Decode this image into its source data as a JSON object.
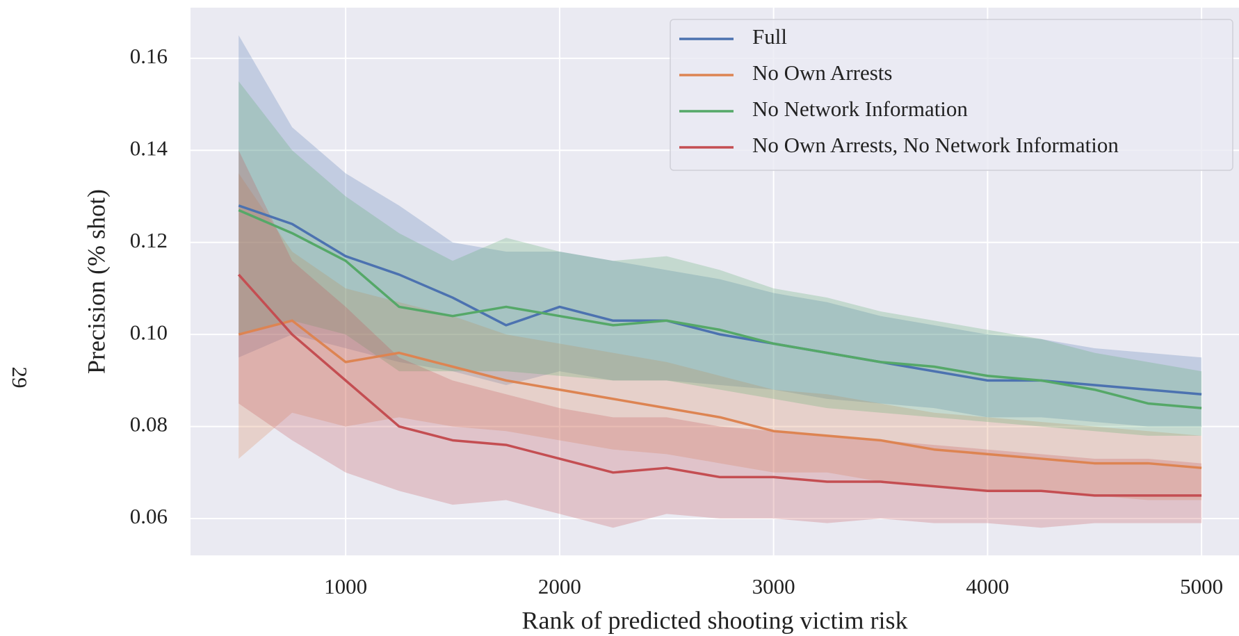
{
  "page_number": "29",
  "chart_data": {
    "type": "line",
    "xlabel": "Rank of predicted shooting victim risk",
    "ylabel": "Precision (% shot)",
    "x": [
      500,
      750,
      1000,
      1250,
      1500,
      1750,
      2000,
      2250,
      2500,
      2750,
      3000,
      3250,
      3500,
      3750,
      4000,
      4250,
      4500,
      4750,
      5000
    ],
    "series": [
      {
        "name": "Full",
        "color": "#4c72b0",
        "values": [
          0.128,
          0.124,
          0.117,
          0.113,
          0.108,
          0.102,
          0.106,
          0.103,
          0.103,
          0.1,
          0.098,
          0.096,
          0.094,
          0.092,
          0.09,
          0.09,
          0.089,
          0.088,
          0.087
        ],
        "upper": [
          0.165,
          0.145,
          0.135,
          0.128,
          0.12,
          0.118,
          0.118,
          0.116,
          0.114,
          0.112,
          0.109,
          0.107,
          0.104,
          0.102,
          0.1,
          0.099,
          0.097,
          0.096,
          0.095
        ],
        "lower": [
          0.095,
          0.1,
          0.097,
          0.094,
          0.092,
          0.089,
          0.092,
          0.09,
          0.09,
          0.089,
          0.088,
          0.086,
          0.085,
          0.084,
          0.082,
          0.082,
          0.081,
          0.08,
          0.08
        ]
      },
      {
        "name": "No Own Arrests",
        "color": "#dd8452",
        "values": [
          0.1,
          0.103,
          0.094,
          0.096,
          0.093,
          0.09,
          0.088,
          0.086,
          0.084,
          0.082,
          0.079,
          0.078,
          0.077,
          0.075,
          0.074,
          0.073,
          0.072,
          0.072,
          0.071
        ],
        "upper": [
          0.135,
          0.118,
          0.11,
          0.107,
          0.104,
          0.1,
          0.098,
          0.096,
          0.094,
          0.091,
          0.088,
          0.087,
          0.085,
          0.083,
          0.082,
          0.081,
          0.08,
          0.079,
          0.078
        ],
        "lower": [
          0.073,
          0.083,
          0.08,
          0.082,
          0.08,
          0.079,
          0.077,
          0.075,
          0.074,
          0.072,
          0.07,
          0.07,
          0.068,
          0.067,
          0.066,
          0.066,
          0.065,
          0.064,
          0.064
        ]
      },
      {
        "name": "No Network Information",
        "color": "#55a868",
        "values": [
          0.127,
          0.122,
          0.116,
          0.106,
          0.104,
          0.106,
          0.104,
          0.102,
          0.103,
          0.101,
          0.098,
          0.096,
          0.094,
          0.093,
          0.091,
          0.09,
          0.088,
          0.085,
          0.084
        ],
        "upper": [
          0.155,
          0.14,
          0.13,
          0.122,
          0.116,
          0.121,
          0.118,
          0.116,
          0.117,
          0.114,
          0.11,
          0.108,
          0.105,
          0.103,
          0.101,
          0.099,
          0.096,
          0.094,
          0.092
        ],
        "lower": [
          0.1,
          0.103,
          0.1,
          0.092,
          0.092,
          0.092,
          0.091,
          0.09,
          0.09,
          0.088,
          0.086,
          0.084,
          0.083,
          0.082,
          0.081,
          0.08,
          0.079,
          0.078,
          0.078
        ]
      },
      {
        "name": "No Own Arrests, No Network Information",
        "color": "#c44e52",
        "values": [
          0.113,
          0.1,
          0.09,
          0.08,
          0.077,
          0.076,
          0.073,
          0.07,
          0.071,
          0.069,
          0.069,
          0.068,
          0.068,
          0.067,
          0.066,
          0.066,
          0.065,
          0.065,
          0.065
        ],
        "upper": [
          0.14,
          0.116,
          0.106,
          0.095,
          0.09,
          0.087,
          0.084,
          0.082,
          0.082,
          0.08,
          0.079,
          0.078,
          0.077,
          0.076,
          0.075,
          0.074,
          0.073,
          0.073,
          0.072
        ],
        "lower": [
          0.085,
          0.077,
          0.07,
          0.066,
          0.063,
          0.064,
          0.061,
          0.058,
          0.061,
          0.06,
          0.06,
          0.059,
          0.06,
          0.059,
          0.059,
          0.058,
          0.059,
          0.059,
          0.059
        ]
      }
    ],
    "xlim": [
      275,
      5175
    ],
    "xticks": [
      1000,
      2000,
      3000,
      4000,
      5000
    ],
    "ylim": [
      0.052,
      0.171
    ],
    "yticks": [
      0.06,
      0.08,
      {
        "value": 0.1,
        "label": "0.10"
      },
      0.12,
      0.14,
      0.16
    ],
    "grid": true,
    "legend": "upper right"
  }
}
